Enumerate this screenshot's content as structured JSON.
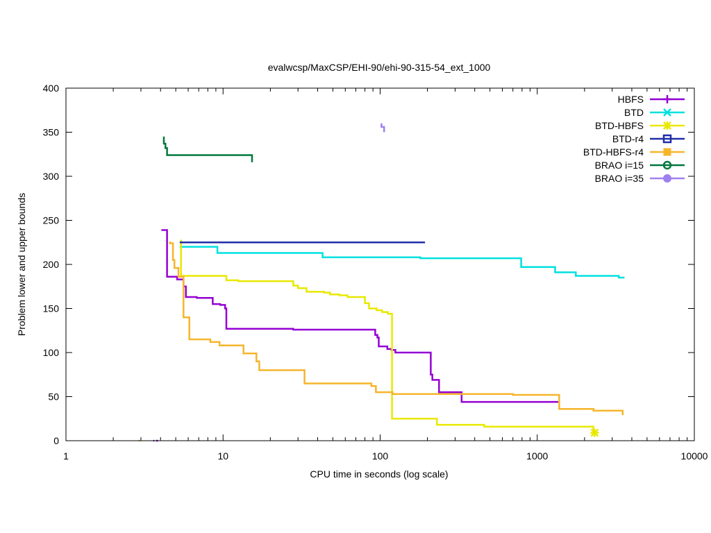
{
  "chart_data": {
    "type": "line",
    "title": "evalwcsp/MaxCSP/EHI-90/ehi-90-315-54_ext_1000",
    "xlabel": "CPU time in seconds (log scale)",
    "ylabel": "Problem lower and upper bounds",
    "xscale": "log",
    "xlim": [
      1,
      10000
    ],
    "ylim": [
      0,
      400
    ],
    "x_ticks": [
      1,
      10,
      100,
      1000,
      10000
    ],
    "x_tick_labels": [
      "1",
      "10",
      "100",
      "1000",
      "10000"
    ],
    "y_ticks": [
      0,
      50,
      100,
      150,
      200,
      250,
      300,
      350,
      400
    ],
    "y_tick_labels": [
      "0",
      "50",
      "100",
      "150",
      "200",
      "250",
      "300",
      "350",
      "400"
    ],
    "legend_position": "top-right",
    "series": [
      {
        "name": "HBFS",
        "color": "#9400d3",
        "marker": "plus",
        "segments": [
          [
            [
              3.75,
              0
            ],
            [
              3.85,
              0
            ]
          ],
          [
            [
              4.05,
              239
            ],
            [
              4.4,
              239
            ],
            [
              4.4,
              186
            ],
            [
              5.1,
              186
            ],
            [
              5.1,
              183
            ],
            [
              5.6,
              183
            ],
            [
              5.6,
              175
            ],
            [
              5.8,
              175
            ],
            [
              5.8,
              163
            ],
            [
              6.8,
              163
            ],
            [
              6.8,
              162
            ],
            [
              8.6,
              162
            ],
            [
              8.6,
              155
            ],
            [
              9.6,
              155
            ],
            [
              9.6,
              154
            ],
            [
              10.3,
              154
            ],
            [
              10.3,
              150
            ],
            [
              10.5,
              150
            ],
            [
              10.5,
              127
            ],
            [
              28,
              127
            ],
            [
              28,
              126
            ],
            [
              93,
              126
            ],
            [
              93,
              120
            ],
            [
              96,
              120
            ],
            [
              96,
              117
            ],
            [
              98,
              117
            ],
            [
              98,
              107
            ],
            [
              111,
              107
            ],
            [
              111,
              104
            ],
            [
              118,
              104
            ],
            [
              118,
              103
            ],
            [
              125,
              103
            ],
            [
              125,
              100
            ],
            [
              210,
              100
            ],
            [
              210,
              75
            ],
            [
              215,
              75
            ],
            [
              215,
              69
            ],
            [
              237,
              69
            ],
            [
              237,
              55
            ],
            [
              330,
              55
            ],
            [
              330,
              44
            ],
            [
              1360,
              44
            ]
          ]
        ]
      },
      {
        "name": "BTD",
        "color": "#00e0e0",
        "marker": "x",
        "segments": [
          [
            [
              5.3,
              220
            ],
            [
              9.2,
              220
            ],
            [
              9.2,
              213
            ],
            [
              43,
              213
            ],
            [
              43,
              208
            ],
            [
              180,
              208
            ],
            [
              180,
              207
            ],
            [
              790,
              207
            ],
            [
              790,
              197
            ],
            [
              1300,
              197
            ],
            [
              1300,
              191
            ],
            [
              1760,
              191
            ],
            [
              1760,
              187
            ],
            [
              3300,
              187
            ],
            [
              3300,
              185
            ],
            [
              3550,
              185
            ],
            [
              3550,
              184
            ]
          ]
        ]
      },
      {
        "name": "BTD-HBFS",
        "color": "#e8e800",
        "marker": "star",
        "segments": [
          [
            [
              5.4,
              228
            ],
            [
              5.4,
              187
            ],
            [
              10.5,
              187
            ],
            [
              10.5,
              182
            ],
            [
              12.5,
              182
            ],
            [
              12.5,
              181
            ],
            [
              28,
              181
            ],
            [
              28,
              176
            ],
            [
              30,
              176
            ],
            [
              30,
              173
            ],
            [
              34,
              173
            ],
            [
              34,
              169
            ],
            [
              44,
              169
            ],
            [
              44,
              168
            ],
            [
              48,
              168
            ],
            [
              48,
              166
            ],
            [
              55,
              166
            ],
            [
              55,
              165
            ],
            [
              62,
              165
            ],
            [
              62,
              163
            ],
            [
              80,
              163
            ],
            [
              80,
              156
            ],
            [
              85,
              156
            ],
            [
              85,
              150
            ],
            [
              95,
              150
            ],
            [
              95,
              148
            ],
            [
              103,
              148
            ],
            [
              103,
              146
            ],
            [
              112,
              146
            ],
            [
              112,
              144
            ],
            [
              119,
              144
            ],
            [
              119,
              25
            ],
            [
              230,
              25
            ],
            [
              230,
              18
            ],
            [
              460,
              18
            ],
            [
              460,
              16
            ],
            [
              2280,
              16
            ],
            [
              2280,
              10
            ]
          ]
        ],
        "points": [
          [
            2320,
            9
          ]
        ]
      },
      {
        "name": "BTD-r4",
        "color": "#1f2ea8",
        "marker": "square",
        "segments": [
          [
            [
              3.6,
              0
            ],
            [
              3.65,
              0
            ]
          ],
          [
            [
              5.3,
              225
            ],
            [
              193,
              225
            ]
          ]
        ]
      },
      {
        "name": "BTD-HBFS-r4",
        "color": "#f5b52b",
        "marker": "filled-square",
        "segments": [
          [
            [
              2.9,
              0
            ],
            [
              2.95,
              0
            ]
          ],
          [
            [
              4.6,
              226
            ],
            [
              4.6,
              224
            ],
            [
              4.8,
              224
            ],
            [
              4.8,
              205
            ],
            [
              4.9,
              205
            ],
            [
              4.9,
              196
            ],
            [
              5.2,
              196
            ],
            [
              5.2,
              186
            ],
            [
              5.6,
              186
            ],
            [
              5.6,
              140
            ],
            [
              6.1,
              140
            ],
            [
              6.1,
              115
            ],
            [
              8.3,
              115
            ],
            [
              8.3,
              112
            ],
            [
              9.5,
              112
            ],
            [
              9.5,
              108
            ],
            [
              13.5,
              108
            ],
            [
              13.5,
              99
            ],
            [
              16.3,
              99
            ],
            [
              16.3,
              90
            ],
            [
              17,
              90
            ],
            [
              17,
              80
            ],
            [
              33,
              80
            ],
            [
              33,
              65
            ],
            [
              88,
              65
            ],
            [
              88,
              62
            ],
            [
              94,
              62
            ],
            [
              94,
              55
            ],
            [
              120,
              55
            ],
            [
              120,
              53
            ],
            [
              700,
              53
            ],
            [
              700,
              52
            ],
            [
              1380,
              52
            ],
            [
              1380,
              36
            ],
            [
              2280,
              36
            ],
            [
              2280,
              34
            ],
            [
              3500,
              34
            ],
            [
              3500,
              29
            ]
          ]
        ]
      },
      {
        "name": "BRAO i=15",
        "color": "#00783c",
        "marker": "circle",
        "segments": [
          [
            [
              4.2,
              345
            ],
            [
              4.2,
              337
            ],
            [
              4.3,
              337
            ],
            [
              4.3,
              332
            ],
            [
              4.4,
              332
            ],
            [
              4.4,
              324
            ],
            [
              15.3,
              324
            ],
            [
              15.3,
              316
            ]
          ]
        ]
      },
      {
        "name": "BRAO i=35",
        "color": "#9f80f0",
        "marker": "filled-circle",
        "segments": [
          [
            [
              102,
              360
            ],
            [
              102,
              356
            ],
            [
              106,
              356
            ],
            [
              106,
              350
            ]
          ]
        ]
      }
    ]
  }
}
